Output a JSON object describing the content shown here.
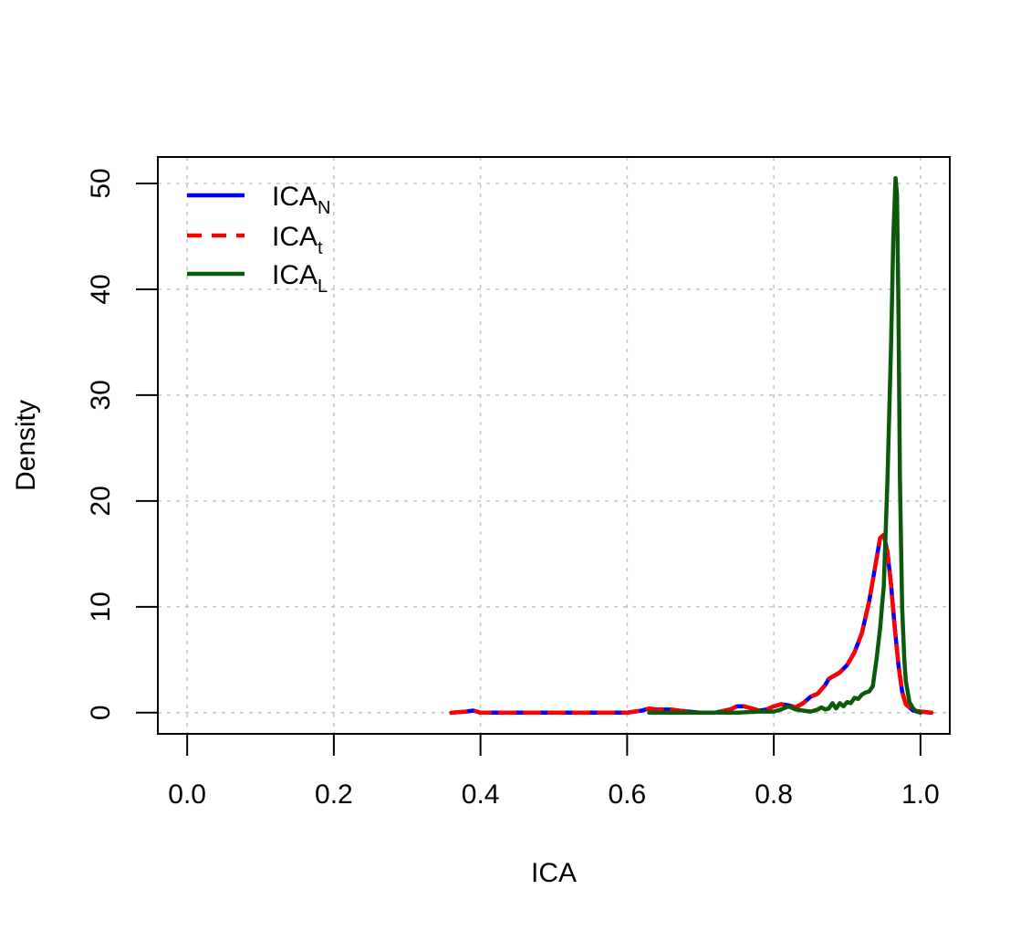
{
  "chart_data": {
    "type": "line",
    "title": "",
    "xlabel": "ICA",
    "ylabel": "Density",
    "xlim": [
      -0.04,
      1.04
    ],
    "ylim": [
      -2,
      52.5
    ],
    "x_ticks": [
      0.0,
      0.2,
      0.4,
      0.6,
      0.8,
      1.0
    ],
    "x_tick_labels": [
      "0.0",
      "0.2",
      "0.4",
      "0.6",
      "0.8",
      "1.0"
    ],
    "y_ticks": [
      0,
      10,
      20,
      30,
      40,
      50
    ],
    "y_tick_labels": [
      "0",
      "10",
      "20",
      "30",
      "40",
      "50"
    ],
    "grid": true,
    "legend_position": "top-left",
    "series": [
      {
        "base": "ICA",
        "sub": "N",
        "color": "#0000ff",
        "dash": "solid",
        "x": [
          0.36,
          0.38,
          0.39,
          0.4,
          0.45,
          0.5,
          0.55,
          0.6,
          0.62,
          0.63,
          0.64,
          0.65,
          0.66,
          0.67,
          0.7,
          0.72,
          0.74,
          0.75,
          0.76,
          0.77,
          0.78,
          0.79,
          0.8,
          0.81,
          0.82,
          0.83,
          0.84,
          0.85,
          0.86,
          0.87,
          0.875,
          0.88,
          0.89,
          0.9,
          0.91,
          0.92,
          0.93,
          0.94,
          0.945,
          0.95,
          0.955,
          0.96,
          0.965,
          0.97,
          0.975,
          0.98,
          0.99,
          1.0,
          1.015
        ],
        "y": [
          0.0,
          0.1,
          0.2,
          0.0,
          0.0,
          0.0,
          0.0,
          0.0,
          0.2,
          0.4,
          0.3,
          0.3,
          0.3,
          0.2,
          0.0,
          0.0,
          0.3,
          0.6,
          0.6,
          0.4,
          0.2,
          0.3,
          0.6,
          0.8,
          0.7,
          0.5,
          0.9,
          1.5,
          1.8,
          2.6,
          3.2,
          3.4,
          3.8,
          4.5,
          5.7,
          7.5,
          10.5,
          14.5,
          16.5,
          16.8,
          15.2,
          12.0,
          8.0,
          4.5,
          2.0,
          0.8,
          0.2,
          0.1,
          0.0
        ]
      },
      {
        "base": "ICA",
        "sub": "t",
        "color": "#ff0000",
        "dash": "dashed",
        "x": [
          0.36,
          0.38,
          0.39,
          0.4,
          0.45,
          0.5,
          0.55,
          0.6,
          0.62,
          0.63,
          0.64,
          0.65,
          0.66,
          0.67,
          0.7,
          0.72,
          0.74,
          0.75,
          0.76,
          0.77,
          0.78,
          0.79,
          0.8,
          0.81,
          0.82,
          0.83,
          0.84,
          0.85,
          0.86,
          0.87,
          0.875,
          0.88,
          0.89,
          0.9,
          0.91,
          0.92,
          0.93,
          0.94,
          0.945,
          0.95,
          0.955,
          0.96,
          0.965,
          0.97,
          0.975,
          0.98,
          0.99,
          1.0,
          1.015
        ],
        "y": [
          0.0,
          0.1,
          0.2,
          0.0,
          0.0,
          0.0,
          0.0,
          0.0,
          0.2,
          0.4,
          0.3,
          0.3,
          0.3,
          0.2,
          0.0,
          0.0,
          0.3,
          0.6,
          0.6,
          0.4,
          0.2,
          0.3,
          0.6,
          0.8,
          0.7,
          0.5,
          0.9,
          1.5,
          1.8,
          2.6,
          3.2,
          3.4,
          3.8,
          4.5,
          5.7,
          7.5,
          10.5,
          14.5,
          16.5,
          16.8,
          15.2,
          12.0,
          8.0,
          4.5,
          2.0,
          0.8,
          0.2,
          0.1,
          0.0
        ]
      },
      {
        "base": "ICA",
        "sub": "L",
        "color": "#0a5a0a",
        "dash": "solid",
        "x": [
          0.63,
          0.65,
          0.7,
          0.75,
          0.78,
          0.8,
          0.81,
          0.82,
          0.83,
          0.84,
          0.85,
          0.86,
          0.865,
          0.87,
          0.875,
          0.88,
          0.885,
          0.89,
          0.895,
          0.9,
          0.905,
          0.91,
          0.915,
          0.92,
          0.925,
          0.93,
          0.935,
          0.94,
          0.945,
          0.95,
          0.955,
          0.96,
          0.963,
          0.966,
          0.968,
          0.97,
          0.972,
          0.975,
          0.978,
          0.98,
          0.985,
          0.99,
          0.995,
          1.0
        ],
        "y": [
          0.0,
          0.0,
          0.0,
          0.0,
          0.1,
          0.1,
          0.3,
          0.6,
          0.3,
          0.2,
          0.1,
          0.3,
          0.5,
          0.3,
          0.4,
          0.9,
          0.4,
          0.9,
          0.6,
          1.0,
          0.9,
          1.4,
          1.3,
          1.7,
          1.9,
          2.0,
          2.5,
          5.0,
          8.0,
          12.0,
          22.0,
          35.0,
          45.0,
          50.5,
          49.0,
          38.0,
          22.0,
          10.0,
          5.0,
          3.0,
          1.0,
          0.4,
          0.1,
          0.0
        ]
      }
    ]
  }
}
